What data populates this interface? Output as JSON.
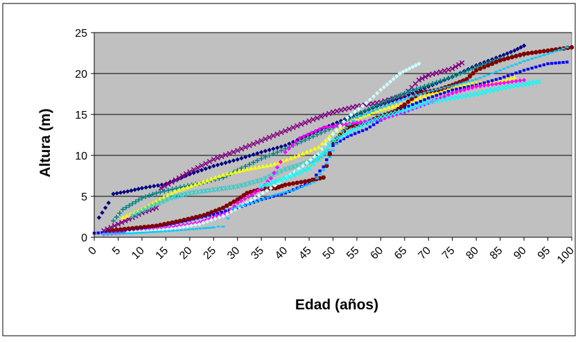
{
  "chart_data": {
    "type": "scatter",
    "title": "",
    "xlabel": "Edad (años)",
    "ylabel": "Altura (m)",
    "xlim": [
      0,
      100
    ],
    "ylim": [
      0,
      25
    ],
    "grid": "horizontal",
    "background_color": "#C0C0C0",
    "x_ticks": [
      "0",
      "5",
      "10",
      "15",
      "20",
      "25",
      "30",
      "35",
      "40",
      "45",
      "50",
      "55",
      "60",
      "65",
      "70",
      "75",
      "80",
      "85",
      "90",
      "95",
      "100"
    ],
    "y_ticks": [
      "0",
      "5",
      "10",
      "15",
      "20",
      "25"
    ],
    "series": [
      {
        "color": "#000080",
        "marker": "diamond",
        "points": [
          [
            1,
            2.4
          ],
          [
            3,
            4.2
          ],
          [
            4,
            5.3
          ],
          [
            7,
            5.6
          ],
          [
            10,
            6
          ],
          [
            15,
            6.5
          ],
          [
            20,
            7.7
          ],
          [
            25,
            8.7
          ],
          [
            30,
            9.5
          ],
          [
            35,
            10.4
          ],
          [
            40,
            11.2
          ],
          [
            45,
            12.5
          ],
          [
            50,
            13.8
          ],
          [
            55,
            15
          ],
          [
            60,
            16.2
          ],
          [
            65,
            17.2
          ],
          [
            70,
            18.4
          ],
          [
            75,
            19.6
          ],
          [
            80,
            21
          ],
          [
            85,
            22.1
          ],
          [
            88,
            22.8
          ],
          [
            90,
            23.4
          ]
        ]
      },
      {
        "color": "#800080",
        "marker": "x",
        "points": [
          [
            2,
            0.8
          ],
          [
            5,
            1.6
          ],
          [
            8,
            2.4
          ],
          [
            10,
            3
          ],
          [
            13,
            3.6
          ],
          [
            14,
            6
          ],
          [
            20,
            8
          ],
          [
            25,
            9.5
          ],
          [
            30,
            10.6
          ],
          [
            35,
            11.8
          ],
          [
            40,
            13
          ],
          [
            45,
            14.2
          ],
          [
            50,
            15.3
          ],
          [
            55,
            16
          ],
          [
            60,
            16.5
          ],
          [
            65,
            17.4
          ],
          [
            68,
            19.2
          ],
          [
            70,
            19.8
          ],
          [
            75,
            20.6
          ],
          [
            77,
            21.3
          ]
        ]
      },
      {
        "color": "#008080",
        "marker": "plus",
        "points": [
          [
            4,
            2
          ],
          [
            6,
            3.4
          ],
          [
            8,
            4.1
          ],
          [
            10,
            4.8
          ],
          [
            13,
            5.4
          ],
          [
            18,
            6.1
          ],
          [
            22,
            6.6
          ],
          [
            27,
            7.3
          ],
          [
            30,
            8.2
          ],
          [
            35,
            9.6
          ],
          [
            40,
            10.8
          ],
          [
            45,
            12.1
          ],
          [
            50,
            13.4
          ],
          [
            55,
            15
          ],
          [
            60,
            16.3
          ],
          [
            65,
            17.6
          ],
          [
            70,
            18.6
          ],
          [
            75,
            19.6
          ],
          [
            80,
            20.8
          ],
          [
            85,
            21.8
          ],
          [
            90,
            22.3
          ]
        ]
      },
      {
        "color": "#FFFF00",
        "marker": "triangle",
        "points": [
          [
            6,
            2.4
          ],
          [
            10,
            3.4
          ],
          [
            13,
            4.4
          ],
          [
            17,
            5.6
          ],
          [
            22,
            6.6
          ],
          [
            27,
            7.6
          ],
          [
            32,
            8.3
          ],
          [
            37,
            8.8
          ],
          [
            42,
            9.8
          ],
          [
            47,
            11
          ],
          [
            50,
            12.7
          ],
          [
            55,
            14.5
          ],
          [
            60,
            15.6
          ],
          [
            65,
            16.3
          ],
          [
            70,
            17.4
          ],
          [
            75,
            18.3
          ],
          [
            80,
            18.8
          ],
          [
            85,
            19
          ],
          [
            88,
            19.5
          ]
        ]
      },
      {
        "color": "#33CCCC",
        "marker": "cross",
        "points": [
          [
            8,
            2.6
          ],
          [
            12,
            3.8
          ],
          [
            16,
            4.8
          ],
          [
            20,
            5.4
          ],
          [
            25,
            5.8
          ],
          [
            30,
            6.2
          ],
          [
            35,
            7
          ],
          [
            40,
            8.3
          ],
          [
            45,
            9.2
          ],
          [
            47,
            9.6
          ],
          [
            49,
            10.5
          ]
        ]
      },
      {
        "color": "#0000FF",
        "marker": "square",
        "points": [
          [
            0,
            0.5
          ],
          [
            5,
            0.7
          ],
          [
            10,
            1.1
          ],
          [
            15,
            1.5
          ],
          [
            20,
            2.1
          ],
          [
            25,
            2.8
          ],
          [
            30,
            3.6
          ],
          [
            35,
            4.6
          ],
          [
            40,
            5.4
          ],
          [
            45,
            6.6
          ],
          [
            48,
            8.6
          ],
          [
            50,
            11.2
          ],
          [
            53,
            12.3
          ],
          [
            57,
            13.2
          ],
          [
            60,
            14.3
          ],
          [
            65,
            15.8
          ],
          [
            70,
            17
          ],
          [
            75,
            18
          ],
          [
            80,
            18.6
          ],
          [
            85,
            19.4
          ],
          [
            90,
            20.4
          ],
          [
            95,
            21.2
          ],
          [
            99,
            21.4
          ]
        ]
      },
      {
        "color": "#800000",
        "marker": "circle",
        "points": [
          [
            3,
            0.8
          ],
          [
            8,
            1.1
          ],
          [
            13,
            1.4
          ],
          [
            18,
            2
          ],
          [
            23,
            2.7
          ],
          [
            27,
            3.6
          ],
          [
            30,
            4.6
          ],
          [
            32,
            5.4
          ],
          [
            35,
            5.9
          ],
          [
            38,
            6
          ],
          [
            40,
            6.4
          ],
          [
            45,
            6.9
          ],
          [
            48,
            7.3
          ],
          [
            50,
            11.6
          ],
          [
            53,
            13.4
          ],
          [
            57,
            14
          ],
          [
            60,
            14.8
          ],
          [
            63,
            15.4
          ],
          [
            65,
            16.2
          ],
          [
            68,
            17.6
          ],
          [
            72,
            18
          ],
          [
            75,
            18.6
          ],
          [
            78,
            19.3
          ],
          [
            80,
            20.4
          ],
          [
            85,
            21.6
          ],
          [
            90,
            22.4
          ],
          [
            95,
            22.8
          ],
          [
            100,
            23.2
          ]
        ]
      },
      {
        "color": "#FF00FF",
        "marker": "diamond",
        "points": [
          [
            2,
            0.4
          ],
          [
            7,
            0.6
          ],
          [
            12,
            0.9
          ],
          [
            17,
            1.3
          ],
          [
            22,
            1.8
          ],
          [
            25,
            2.4
          ],
          [
            28,
            3
          ],
          [
            30,
            4.2
          ],
          [
            33,
            5.2
          ],
          [
            35,
            6
          ],
          [
            37,
            7.2
          ],
          [
            39,
            9.2
          ],
          [
            40,
            10.4
          ],
          [
            43,
            12.1
          ],
          [
            48,
            13.4
          ],
          [
            55,
            14
          ],
          [
            60,
            14.4
          ],
          [
            65,
            15.3
          ],
          [
            70,
            16.4
          ],
          [
            75,
            17.6
          ],
          [
            80,
            18.4
          ],
          [
            85,
            18.8
          ],
          [
            90,
            19.2
          ]
        ]
      },
      {
        "color": "#CCFFFF",
        "marker": "diamond",
        "points": [
          [
            7,
            0.6
          ],
          [
            12,
            0.8
          ],
          [
            17,
            1.1
          ],
          [
            22,
            1.6
          ],
          [
            27,
            2.6
          ],
          [
            32,
            4.2
          ],
          [
            37,
            6
          ],
          [
            42,
            8
          ],
          [
            47,
            10.2
          ],
          [
            50,
            12.6
          ],
          [
            53,
            14.6
          ],
          [
            57,
            16.4
          ],
          [
            60,
            18
          ],
          [
            62,
            19
          ],
          [
            64,
            20
          ],
          [
            66,
            20.6
          ],
          [
            68,
            21.2
          ]
        ]
      },
      {
        "color": "#00CCFF",
        "marker": "line",
        "points": [
          [
            2,
            0.4
          ],
          [
            8,
            0.5
          ],
          [
            14,
            0.7
          ],
          [
            19,
            0.9
          ],
          [
            23,
            1.1
          ],
          [
            25,
            1.2
          ],
          [
            26,
            1.3
          ],
          [
            27,
            1.3
          ],
          [
            28,
            2.3
          ],
          [
            29,
            3.5
          ],
          [
            33,
            4.2
          ],
          [
            38,
            5.2
          ],
          [
            42,
            5.8
          ],
          [
            46,
            6.7
          ],
          [
            48,
            8.2
          ],
          [
            50,
            10.6
          ],
          [
            52,
            13
          ],
          [
            55,
            14.6
          ],
          [
            60,
            15.8
          ],
          [
            65,
            16.9
          ],
          [
            70,
            17.8
          ],
          [
            75,
            18.5
          ],
          [
            80,
            19.3
          ],
          [
            85,
            20.4
          ],
          [
            90,
            21.5
          ],
          [
            95,
            22.4
          ],
          [
            99,
            23.2
          ]
        ]
      },
      {
        "color": "#00FFFF",
        "marker": "x",
        "points": [
          [
            35,
            6.2
          ],
          [
            40,
            7.2
          ],
          [
            45,
            8.4
          ],
          [
            50,
            11.8
          ],
          [
            55,
            13.4
          ],
          [
            60,
            14.7
          ],
          [
            65,
            15.5
          ],
          [
            70,
            16.5
          ],
          [
            75,
            17
          ],
          [
            80,
            17.5
          ],
          [
            85,
            18.2
          ],
          [
            90,
            18.7
          ],
          [
            93,
            19
          ]
        ]
      }
    ]
  }
}
